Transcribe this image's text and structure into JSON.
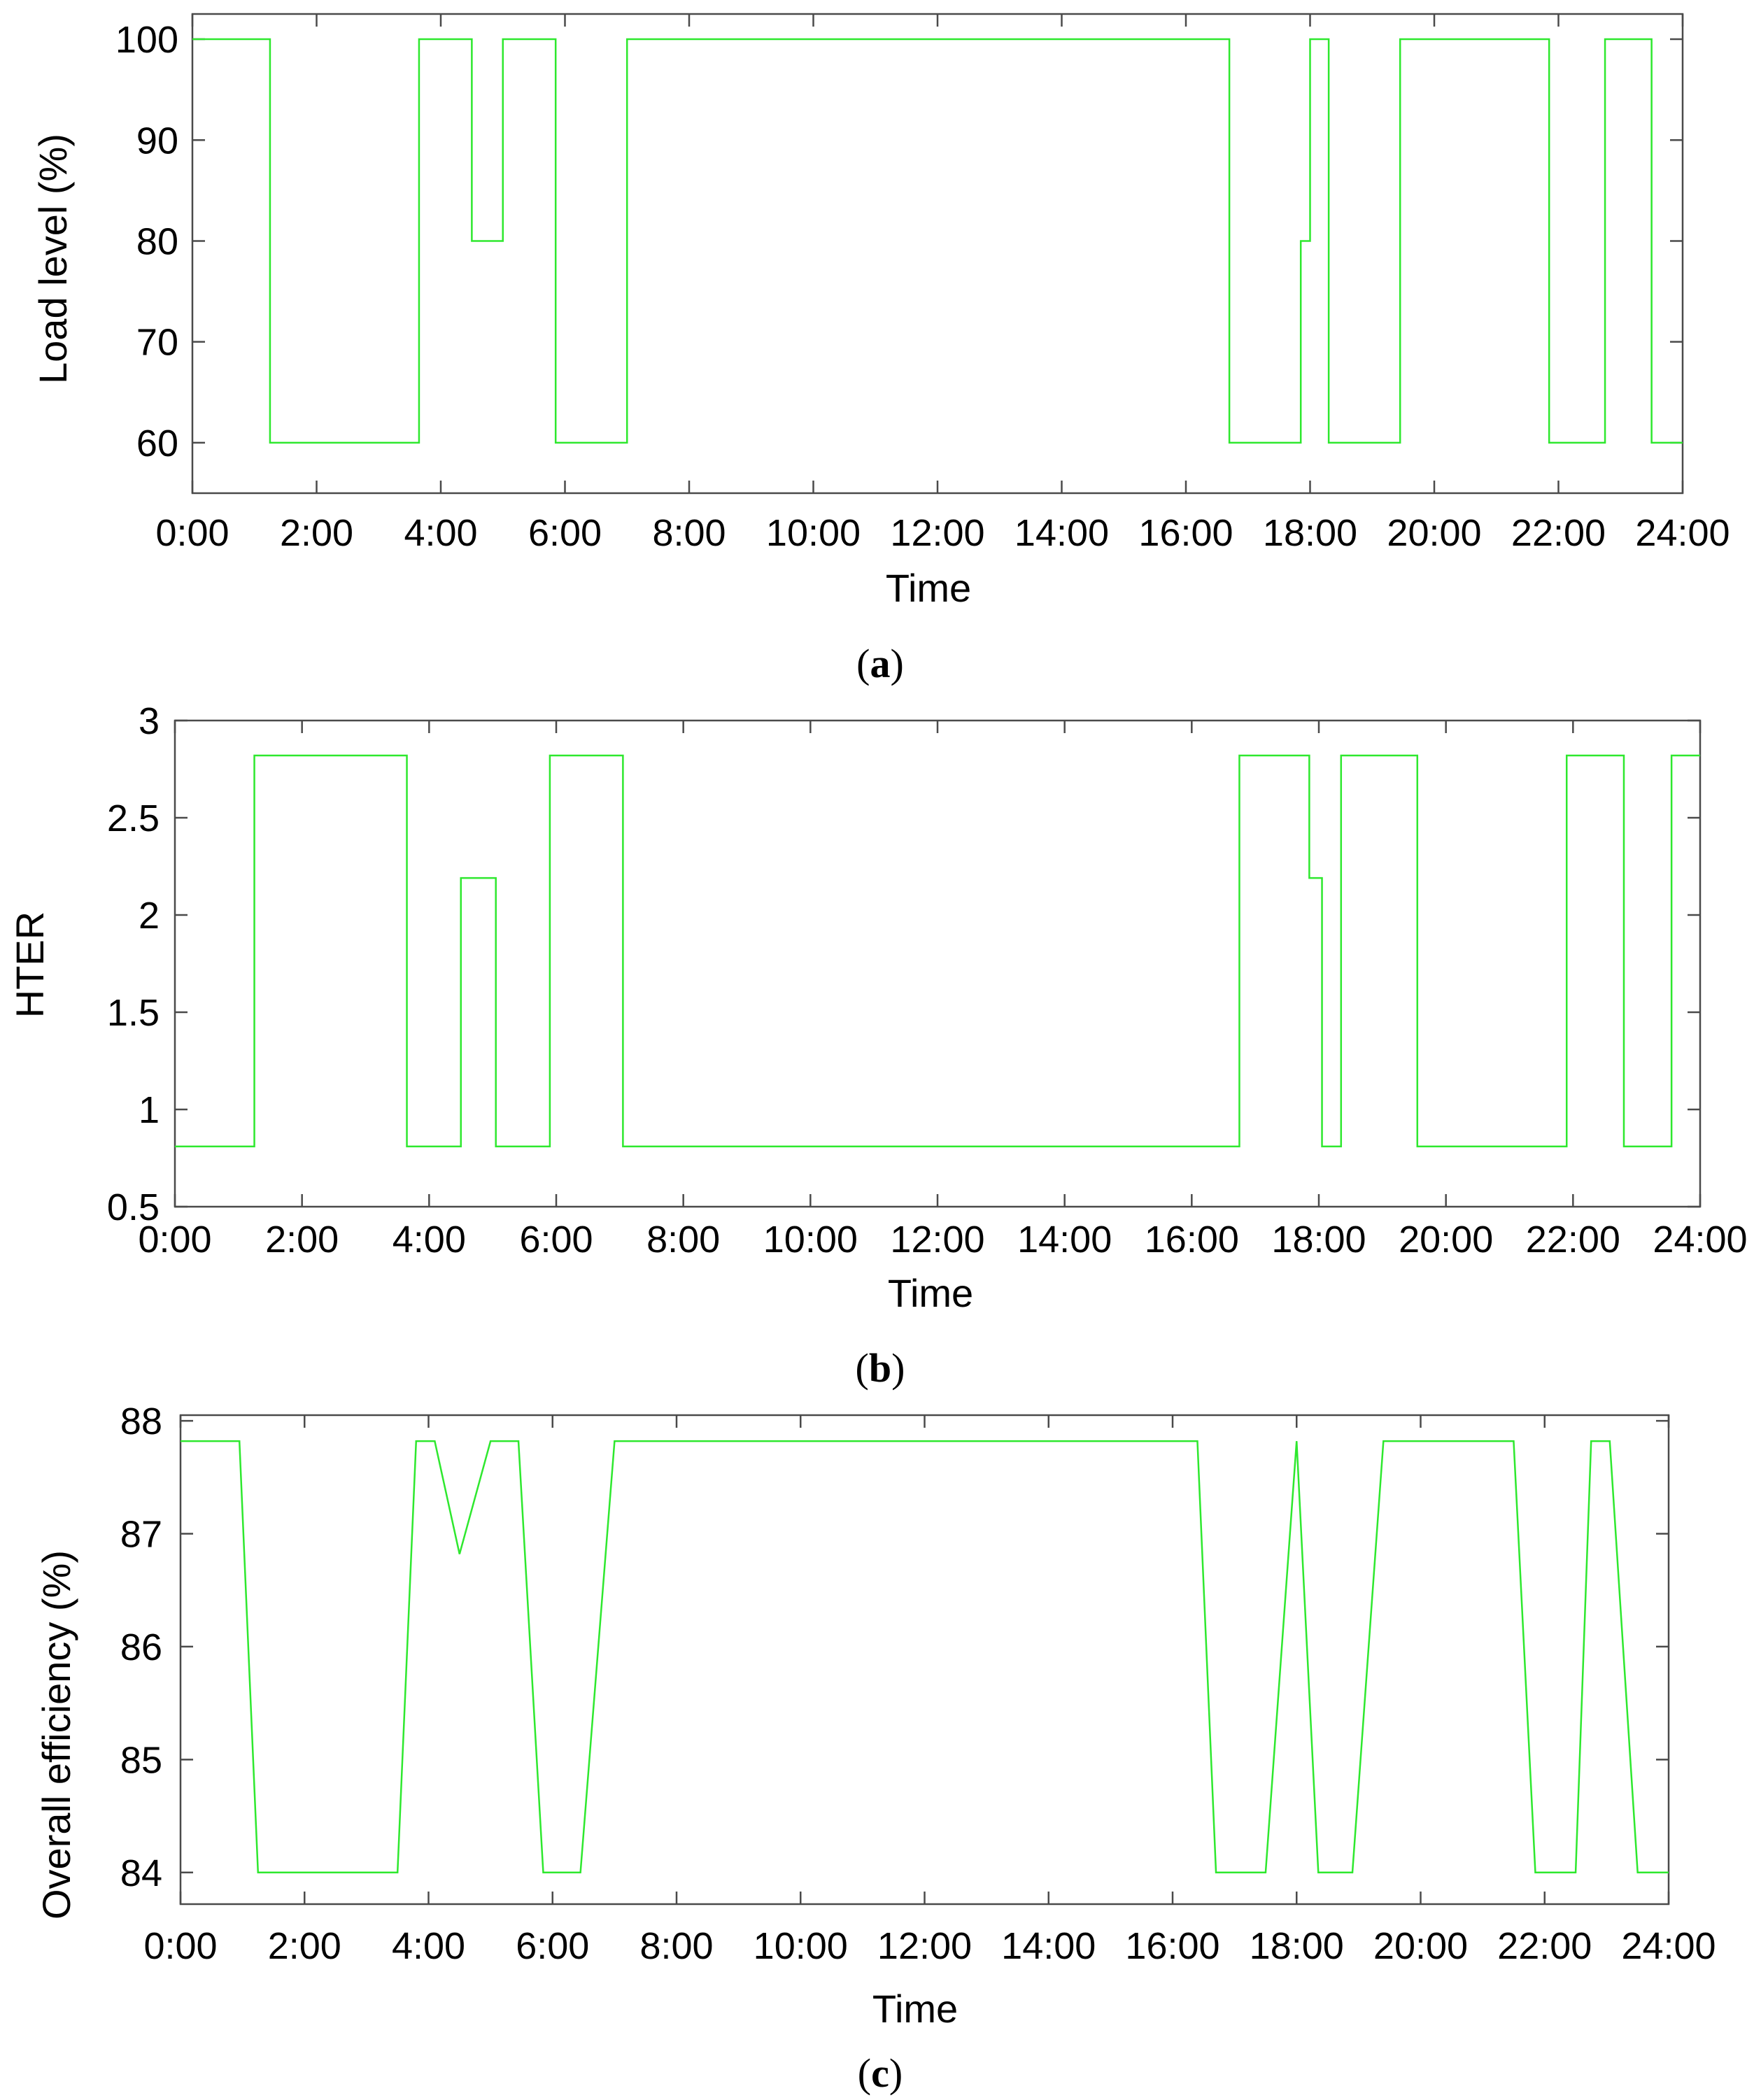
{
  "chart_data": [
    {
      "type": "line",
      "panel": "a",
      "xlabel": "Time",
      "ylabel": "Load level (%)",
      "xlim": [
        0,
        24
      ],
      "ylim": [
        55,
        102.5
      ],
      "xticks": [
        "0:00",
        "2:00",
        "4:00",
        "6:00",
        "8:00",
        "10:00",
        "12:00",
        "14:00",
        "16:00",
        "18:00",
        "20:00",
        "22:00",
        "24:00"
      ],
      "yticks": [
        60,
        70,
        80,
        90,
        100
      ],
      "ytick_labels": [
        "60",
        "70",
        "80",
        "90",
        "100"
      ],
      "step": true,
      "series": [
        {
          "x": [
            0,
            1.25,
            3.65,
            4.5,
            5.0,
            5.85,
            7.0,
            16.7,
            17.85,
            18.0,
            18.3,
            19.45,
            21.85,
            22.75,
            23.5,
            24
          ],
          "y": [
            100,
            60,
            100,
            80,
            100,
            60,
            100,
            60,
            80,
            100,
            60,
            100,
            60,
            100,
            60,
            60
          ]
        }
      ]
    },
    {
      "type": "line",
      "panel": "b",
      "xlabel": "Time",
      "ylabel": "HTER",
      "xlim": [
        0,
        24
      ],
      "ylim": [
        0.5,
        3
      ],
      "xticks": [
        "0:00",
        "2:00",
        "4:00",
        "6:00",
        "8:00",
        "10:00",
        "12:00",
        "14:00",
        "16:00",
        "18:00",
        "20:00",
        "22:00",
        "24:00"
      ],
      "yticks": [
        0.5,
        1,
        1.5,
        2,
        2.5,
        3
      ],
      "ytick_labels": [
        "0.5",
        "1",
        "1.5",
        "2",
        "2.5",
        "3"
      ],
      "step": true,
      "series": [
        {
          "x": [
            0,
            1.25,
            3.65,
            4.5,
            5.05,
            5.9,
            7.05,
            16.75,
            17.85,
            18.05,
            18.35,
            19.55,
            21.9,
            22.8,
            23.55,
            24
          ],
          "y": [
            0.81,
            2.82,
            0.81,
            2.19,
            0.81,
            2.82,
            0.81,
            2.82,
            2.19,
            0.81,
            2.82,
            0.81,
            2.82,
            0.81,
            2.82,
            2.82
          ]
        }
      ]
    },
    {
      "type": "line",
      "panel": "c",
      "xlabel": "Time",
      "ylabel": "Overall efficiency (%)",
      "xlim": [
        0,
        24
      ],
      "ylim": [
        83.72,
        88.05
      ],
      "xticks": [
        "0:00",
        "2:00",
        "4:00",
        "6:00",
        "8:00",
        "10:00",
        "12:00",
        "14:00",
        "16:00",
        "18:00",
        "20:00",
        "22:00",
        "24:00"
      ],
      "yticks": [
        84,
        85,
        86,
        87,
        88
      ],
      "ytick_labels": [
        "84",
        "85",
        "86",
        "87",
        "88"
      ],
      "step": false,
      "series": [
        {
          "x": [
            0,
            0.95,
            1.25,
            3.5,
            3.8,
            4.1,
            4.5,
            5.0,
            5.45,
            5.85,
            6.45,
            7.0,
            16.4,
            16.7,
            17.5,
            18.0,
            18.35,
            18.9,
            19.4,
            21.5,
            21.85,
            22.5,
            22.75,
            23.05,
            23.5,
            24.0
          ],
          "y": [
            87.82,
            87.82,
            84.0,
            84.0,
            87.82,
            87.82,
            86.82,
            87.82,
            87.82,
            84.0,
            84.0,
            87.82,
            87.82,
            84.0,
            84.0,
            87.82,
            84.0,
            84.0,
            87.82,
            87.82,
            84.0,
            84.0,
            87.82,
            87.82,
            84.0,
            84.0
          ]
        }
      ]
    }
  ],
  "panel_labels": [
    "(a)",
    "(b)",
    "(c)"
  ]
}
